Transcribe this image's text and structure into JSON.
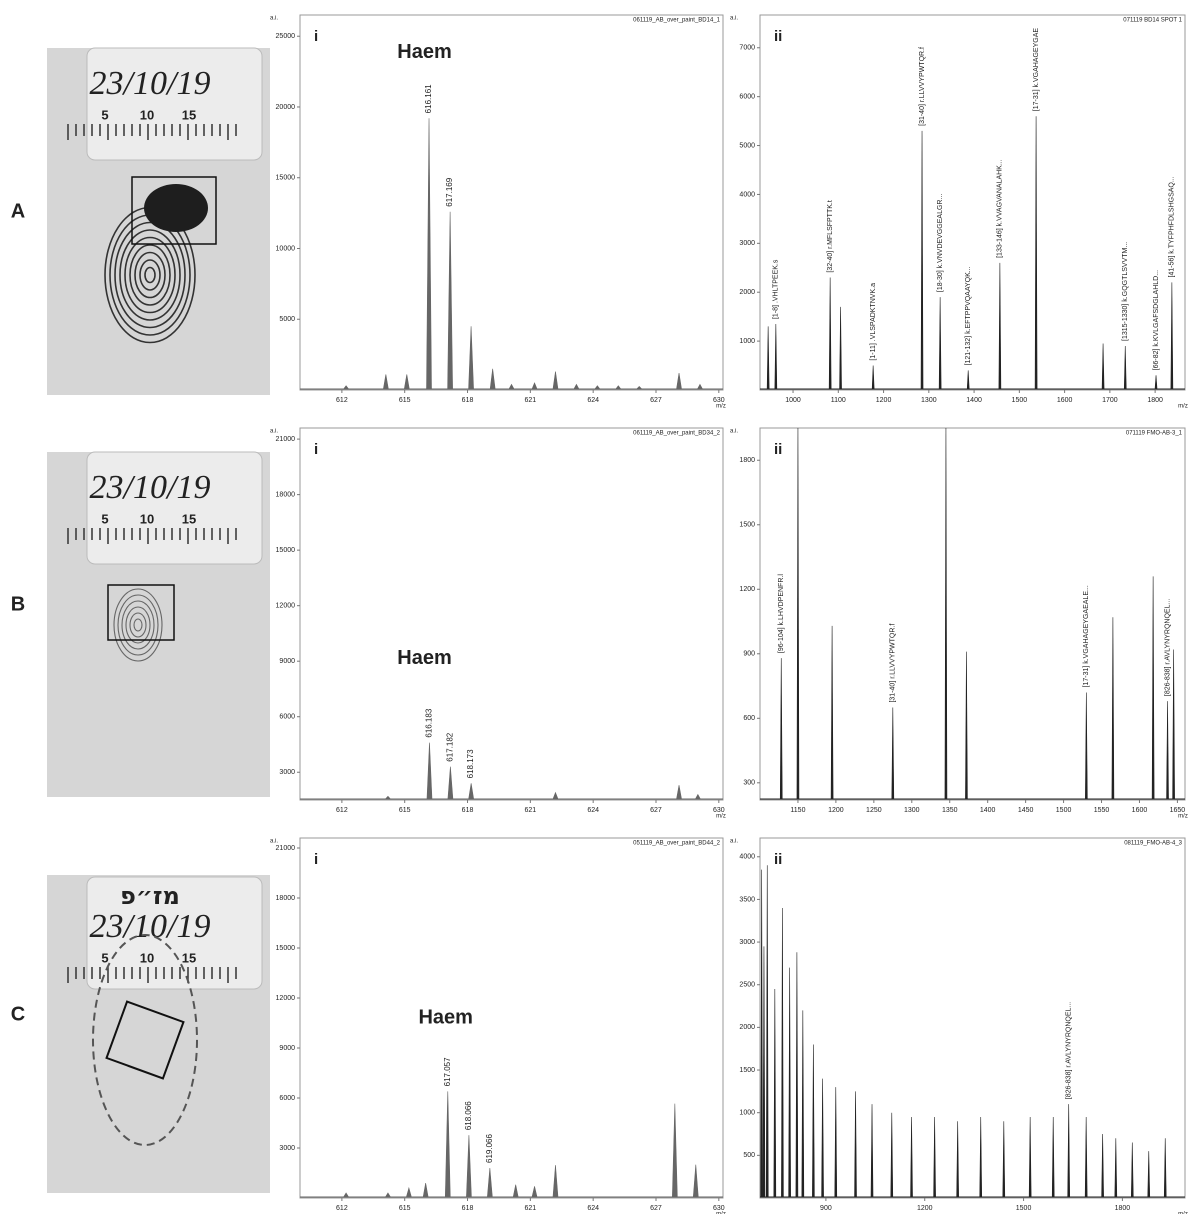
{
  "rows": [
    {
      "label": "A",
      "photo_date": "23/10/19",
      "ruler": [
        "5",
        "10",
        "15"
      ]
    },
    {
      "label": "B",
      "photo_date": "23/10/19",
      "ruler": [
        "5",
        "10",
        "15"
      ]
    },
    {
      "label": "C",
      "photo_mark": "מז״פ",
      "photo_date": "23/10/19",
      "ruler": [
        "5",
        "10",
        "15"
      ]
    }
  ],
  "chart_data": [
    {
      "type": "spectrum",
      "panel": "i",
      "header": "061119_AB_over_paint_BD14_1",
      "annotation": "Haem",
      "ylabel": "a.i.",
      "xlabel": "m/z",
      "color": "#666666",
      "x": [
        612.2,
        614.1,
        615.1,
        616.161,
        617.169,
        618.17,
        619.2,
        620.1,
        621.2,
        622.2,
        623.2,
        624.2,
        625.2,
        626.2,
        628.1,
        629.1
      ],
      "values": [
        300,
        1100,
        1100,
        19200,
        12600,
        4500,
        1500,
        400,
        500,
        1300,
        400,
        300,
        300,
        250,
        1200,
        400
      ],
      "peak_labels": [
        null,
        null,
        null,
        "616.161",
        "617.169",
        null,
        null,
        null,
        null,
        null,
        null,
        null,
        null,
        null,
        null,
        null
      ],
      "xlim": [
        610,
        630.2
      ],
      "ylim": [
        0,
        26500
      ],
      "xticks": [
        612,
        615,
        618,
        621,
        624,
        627,
        630
      ],
      "yticks": [
        5000,
        10000,
        15000,
        20000,
        25000
      ]
    },
    {
      "type": "spectrum",
      "panel": "ii",
      "header": "071119 BD14 SPOT 1",
      "ylabel": "a.i.",
      "xlabel": "m/z",
      "color": "#222222",
      "x": [
        945,
        962,
        1082,
        1105,
        1177,
        1285,
        1325,
        1387,
        1457,
        1537,
        1685,
        1734,
        1802,
        1837
      ],
      "values": [
        1300,
        1350,
        2300,
        1700,
        500,
        5300,
        1900,
        400,
        2600,
        5600,
        950,
        900,
        300,
        2200
      ],
      "peak_labels": [
        null,
        "[1-8] .VHLTPEEK.s",
        "[32-40] r.MFLSFPTTK.t",
        null,
        "[1-11] .VLSPADKTNVK.a",
        "[31-40] r.LLVVYPWTQR.f",
        "[18-30] k.VNVDEVGGEALGR...",
        "[121-132] k.EFTPPVQAAYQK...",
        "[133-146] k.VVAGVANALAHK...",
        "[17-31] k.VGAHAGEYGAE",
        null,
        "[1315-1330] k.GQGTLSVVTM...",
        "[66-82] k.KVLGAFSDGLAHLD...",
        "[41-56] k.TYFPHFDLSHGSAQ..."
      ],
      "xlim": [
        927,
        1866
      ],
      "ylim": [
        0,
        7670
      ],
      "xticks": [
        1000,
        1100,
        1200,
        1300,
        1400,
        1500,
        1600,
        1700,
        1800
      ],
      "yticks": [
        1000,
        2000,
        3000,
        4000,
        5000,
        6000,
        7000
      ]
    },
    {
      "type": "spectrum",
      "panel": "i",
      "header": "061119_AB_over_paint_BD34_2",
      "annotation": "Haem",
      "ylabel": "a.i.",
      "xlabel": "m/z",
      "color": "#666666",
      "x": [
        614.2,
        616.183,
        617.182,
        618.173,
        622.2,
        628.1,
        629.0
      ],
      "values": [
        1700,
        4600,
        3300,
        2400,
        1900,
        2300,
        1800
      ],
      "peak_labels": [
        null,
        "616.183",
        "617.182",
        "618.173",
        null,
        null,
        null
      ],
      "xlim": [
        610,
        630.2
      ],
      "ylim": [
        1500,
        21600
      ],
      "xticks": [
        612,
        615,
        618,
        621,
        624,
        627,
        630
      ],
      "yticks": [
        3000,
        6000,
        9000,
        12000,
        15000,
        18000,
        21000
      ]
    },
    {
      "type": "spectrum",
      "panel": "ii",
      "header": "071119 FMO-AB-3_1",
      "ylabel": "a.i.",
      "xlabel": "m/z",
      "color": "#222222",
      "x": [
        1128,
        1150,
        1195,
        1275,
        1345,
        1372,
        1530,
        1565,
        1618,
        1637,
        1645
      ],
      "values": [
        880,
        1950,
        1030,
        650,
        1950,
        910,
        720,
        1070,
        1260,
        680,
        920
      ],
      "peak_labels": [
        "[96-104] k.LHVDPENFR.l",
        null,
        null,
        "[31-40] r.LLVVYPWTQR.f",
        null,
        null,
        "[17-31] k.VGAHAGEYGAEALE...",
        null,
        null,
        "[826-838] r.AVLYNYRQNQEL...",
        null
      ],
      "xlim": [
        1100,
        1660
      ],
      "ylim": [
        220,
        1950
      ],
      "xticks": [
        1150,
        1200,
        1250,
        1300,
        1350,
        1400,
        1450,
        1500,
        1550,
        1600,
        1650
      ],
      "yticks": [
        300,
        600,
        900,
        1200,
        1500,
        1800
      ]
    },
    {
      "type": "spectrum",
      "panel": "i",
      "header": "051119_AB_over_paint_BD44_2",
      "annotation": "Haem",
      "ylabel": "a.i.",
      "xlabel": "m/z",
      "color": "#666666",
      "x": [
        612.2,
        614.2,
        615.2,
        616.0,
        617.057,
        618.066,
        619.066,
        620.3,
        621.2,
        622.2,
        627.9,
        628.9
      ],
      "values": [
        300,
        300,
        600,
        900,
        6400,
        3770,
        1800,
        800,
        700,
        1970,
        5660,
        2000
      ],
      "peak_labels": [
        null,
        null,
        null,
        null,
        "617.057",
        "618.066",
        "619.066",
        null,
        null,
        null,
        null,
        null
      ],
      "xlim": [
        610,
        630.2
      ],
      "ylim": [
        0,
        21600
      ],
      "xticks": [
        612,
        615,
        618,
        621,
        624,
        627,
        630
      ],
      "yticks": [
        3000,
        6000,
        9000,
        12000,
        15000,
        18000,
        21000
      ]
    },
    {
      "type": "spectrum",
      "panel": "ii",
      "header": "081119_FMO-AB-4_3",
      "ylabel": "a.i.",
      "xlabel": "m/z",
      "color": "#222222",
      "x": [
        705,
        712,
        722,
        745,
        768,
        790,
        812,
        830,
        862,
        890,
        930,
        990,
        1040,
        1100,
        1160,
        1230,
        1300,
        1370,
        1440,
        1520,
        1590,
        1637,
        1690,
        1740,
        1780,
        1830,
        1880,
        1930
      ],
      "values": [
        3850,
        2950,
        3900,
        2450,
        3400,
        2700,
        2880,
        2200,
        1800,
        1400,
        1300,
        1250,
        1100,
        1000,
        950,
        950,
        900,
        950,
        900,
        950,
        950,
        1100,
        950,
        750,
        700,
        650,
        550,
        700
      ],
      "peak_labels": [
        null,
        null,
        null,
        null,
        null,
        null,
        null,
        null,
        null,
        null,
        null,
        null,
        null,
        null,
        null,
        null,
        null,
        null,
        null,
        null,
        null,
        "[826-838] r.AVLYNYRQNQEL...",
        null,
        null,
        null,
        null,
        null,
        null
      ],
      "xlim": [
        700,
        1990
      ],
      "ylim": [
        0,
        4220
      ],
      "xticks": [
        900,
        1200,
        1500,
        1800
      ],
      "yticks": [
        500,
        1000,
        1500,
        2000,
        2500,
        3000,
        3500,
        4000
      ]
    }
  ]
}
